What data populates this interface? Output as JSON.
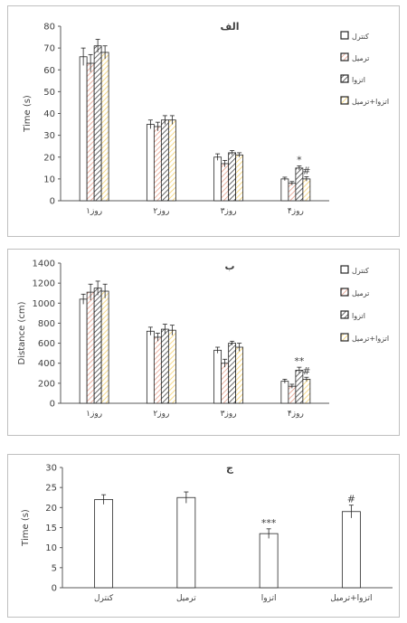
{
  "chart_data": [
    {
      "type": "bar",
      "title": "الف",
      "ylabel": "Time (s)",
      "ylim": [
        0,
        80
      ],
      "yticks": [
        0,
        10,
        20,
        30,
        40,
        50,
        60,
        70,
        80
      ],
      "categories": [
        "روز۱",
        "روز۲",
        "روز۳",
        "روز۴"
      ],
      "series": [
        {
          "name": "کنترل",
          "values": [
            66,
            35,
            20,
            10
          ],
          "errors": [
            4,
            2,
            1.5,
            0.8
          ],
          "pattern": "white"
        },
        {
          "name": "ترمیل",
          "values": [
            63,
            34,
            17,
            8
          ],
          "errors": [
            4,
            2,
            1.5,
            0.8
          ],
          "pattern": "hatch-red"
        },
        {
          "name": "اتزوا",
          "values": [
            71,
            37,
            22,
            15
          ],
          "errors": [
            3,
            2,
            1,
            1
          ],
          "pattern": "hatch-black"
        },
        {
          "name": "اتزوا+ترمیل",
          "values": [
            68,
            37,
            21,
            10
          ],
          "errors": [
            3,
            2,
            1,
            1
          ],
          "pattern": "hatch-yellow"
        }
      ],
      "annotations": [
        {
          "category": "روز۴",
          "series": "اتزوا",
          "text": "*"
        },
        {
          "category": "روز۴",
          "series": "اتزوا+ترمیل",
          "text": "#"
        }
      ],
      "legend": "right"
    },
    {
      "type": "bar",
      "title": "ب",
      "ylabel": "Distance (cm)",
      "ylim": [
        0,
        1400
      ],
      "yticks": [
        0,
        200,
        400,
        600,
        800,
        1000,
        1200,
        1400
      ],
      "categories": [
        "روز۱",
        "روز۲",
        "روز۳",
        "روز۴"
      ],
      "series": [
        {
          "name": "کنترل",
          "values": [
            1040,
            720,
            530,
            220
          ],
          "errors": [
            50,
            40,
            30,
            20
          ],
          "pattern": "white"
        },
        {
          "name": "ترمیل",
          "values": [
            1110,
            660,
            400,
            170
          ],
          "errors": [
            80,
            40,
            40,
            20
          ],
          "pattern": "hatch-red"
        },
        {
          "name": "اتزوا",
          "values": [
            1150,
            740,
            600,
            330
          ],
          "errors": [
            70,
            50,
            20,
            30
          ],
          "pattern": "hatch-black"
        },
        {
          "name": "اتزوا+ترمیل",
          "values": [
            1120,
            730,
            560,
            240
          ],
          "errors": [
            70,
            50,
            40,
            20
          ],
          "pattern": "hatch-yellow"
        }
      ],
      "annotations": [
        {
          "category": "روز۴",
          "series": "اتزوا",
          "text": "**"
        },
        {
          "category": "روز۴",
          "series": "اتزوا+ترمیل",
          "text": "#"
        }
      ],
      "legend": "right"
    },
    {
      "type": "bar",
      "title": "ج",
      "ylabel": "Time (s)",
      "ylim": [
        0,
        30
      ],
      "yticks": [
        0,
        5,
        10,
        15,
        20,
        25,
        30
      ],
      "categories": [
        "کنترل",
        "ترمیل",
        "اتزوا",
        "اتزوا+ترمیل"
      ],
      "series": [
        {
          "name": "",
          "values": [
            22,
            22.5,
            13.5,
            19
          ],
          "errors": [
            1.2,
            1.4,
            1.2,
            1.6
          ],
          "pattern": "white"
        }
      ],
      "annotations": [
        {
          "category": "اتزوا",
          "series": "",
          "text": "***"
        },
        {
          "category": "اتزوا+ترمیل",
          "series": "",
          "text": "#"
        }
      ]
    }
  ],
  "colors": {
    "axis": "#595959",
    "bar_stroke": "#262626",
    "hatch_red": "#e8a08e",
    "hatch_black": "#444444",
    "hatch_yellow": "#f5d26e",
    "panel_border": "#bfbfbf"
  }
}
